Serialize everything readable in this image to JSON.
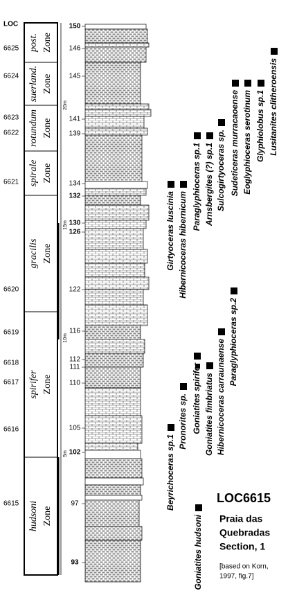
{
  "header": {
    "loc_label": "LOC"
  },
  "loc_numbers": [
    "6625",
    "6624",
    "6623",
    "6622",
    "6621",
    "6620",
    "6619",
    "6618",
    "6617",
    "6616",
    "6615"
  ],
  "zones": [
    {
      "name": "post.",
      "rank": "Zone"
    },
    {
      "name": "suerland.",
      "rank": "Zone"
    },
    {
      "name": "rotundum",
      "rank": "Zone"
    },
    {
      "name": "spirale",
      "rank": "Zone"
    },
    {
      "name": "gracilis",
      "rank": "Zone"
    },
    {
      "name": "spirifer",
      "rank": "Zone"
    },
    {
      "name": "hudsoni",
      "rank": "Zone"
    }
  ],
  "beds": [
    "150",
    "146",
    "145",
    "141",
    "139",
    "134",
    "132",
    "130",
    "126",
    "122",
    "116",
    "112",
    "111",
    "110",
    "105",
    "102",
    "97",
    "93"
  ],
  "scale": [
    "20m",
    "15m",
    "10m",
    "5m"
  ],
  "taxa": [
    "Goniatites hudsoni",
    "Beyrichoceras sp.1",
    "Pronorites sp.",
    "Goniatites spirifer",
    "Goniatites fimbriatus",
    "Hibernicoceras carraunaense",
    "Paraglyphioceras sp.2",
    "Girtyoceras luscinia",
    "Hibernicoceras hibernicum",
    "Paraglyphioceras sp.1",
    "Arnsbergites (?) sp.1",
    "Sulcogirtyoceras sp.",
    "Sudeticeras murracaoense",
    "Eoglyphioceras serotinum",
    "Glyphiolobus sp.1",
    "Lusitanites clitheroensis"
  ],
  "title": "LOC6615",
  "subtitle": [
    "Praia das",
    "Quebradas",
    "Section, 1"
  ],
  "source": [
    "[based on Korn,",
    "1997, fig.7]"
  ]
}
